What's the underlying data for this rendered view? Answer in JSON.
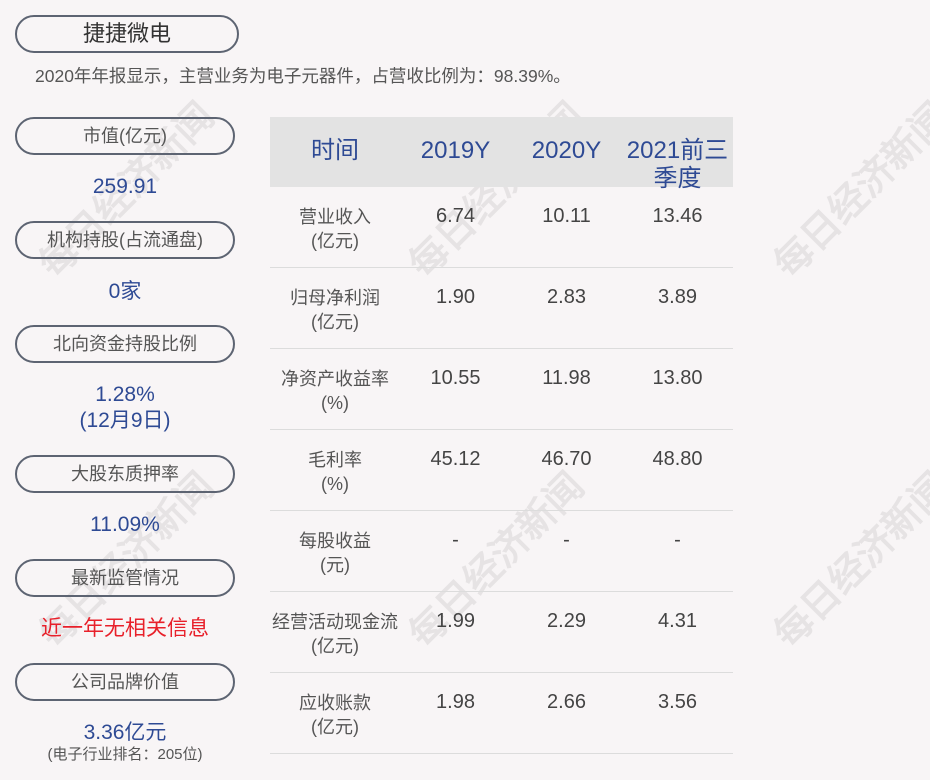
{
  "title": "捷捷微电",
  "description": "2020年年报显示，主营业务为电子元器件，占营收比例为：98.39%。",
  "left": [
    {
      "label": "市值(亿元)",
      "value": "259.91"
    },
    {
      "label": "机构持股(占流通盘)",
      "value": "0家"
    },
    {
      "label": "北向资金持股比例",
      "value": "1.28%",
      "value2": "(12月9日)"
    },
    {
      "label": "大股东质押率",
      "value": "11.09%"
    },
    {
      "label": "最新监管情况",
      "value": "近一年无相关信息"
    },
    {
      "label": "公司品牌价值",
      "value": "3.36亿元",
      "note": "(电子行业排名：205位)"
    }
  ],
  "table": {
    "headers": [
      "时间",
      "2019Y",
      "2020Y",
      "2021前三季度"
    ],
    "rows": [
      {
        "l1": "营业收入",
        "l2": "(亿元)",
        "v": [
          "6.74",
          "10.11",
          "13.46"
        ]
      },
      {
        "l1": "归母净利润",
        "l2": "(亿元)",
        "v": [
          "1.90",
          "2.83",
          "3.89"
        ]
      },
      {
        "l1": "净资产收益率",
        "l2": "(%)",
        "v": [
          "10.55",
          "11.98",
          "13.80"
        ]
      },
      {
        "l1": "毛利率",
        "l2": "(%)",
        "v": [
          "45.12",
          "46.70",
          "48.80"
        ]
      },
      {
        "l1": "每股收益",
        "l2": "(元)",
        "v": [
          "-",
          "-",
          "-"
        ]
      },
      {
        "l1": "经营活动现金流",
        "l2": "(亿元)",
        "v": [
          "1.99",
          "2.29",
          "4.31"
        ]
      },
      {
        "l1": "应收账款",
        "l2": "(亿元)",
        "v": [
          "1.98",
          "2.66",
          "3.56"
        ]
      }
    ]
  },
  "watermark": "每日经济新闻",
  "colors": {
    "accent": "#2e4a94",
    "alert": "#e8202a"
  }
}
